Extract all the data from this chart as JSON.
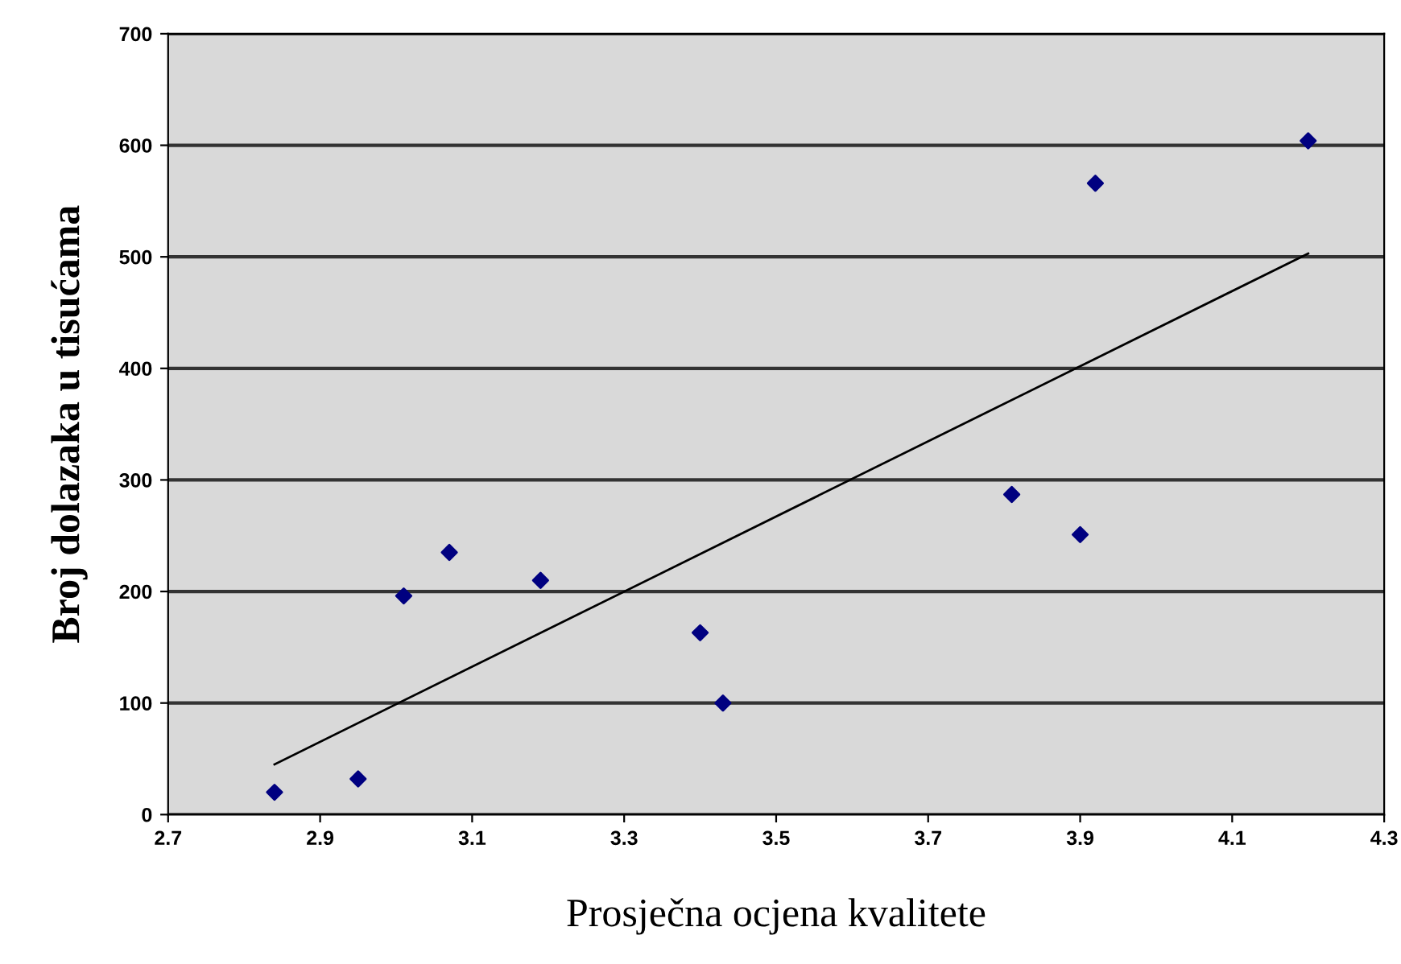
{
  "chart_data": {
    "type": "scatter",
    "xlabel": "Prosječna ocjena kvalitete",
    "ylabel": "Broj dolazaka u tisućama",
    "xlim": [
      2.7,
      4.3
    ],
    "xticks": [
      2.7,
      2.9,
      3.1,
      3.3,
      3.5,
      3.7,
      3.9,
      4.1,
      4.3
    ],
    "ylim": [
      0,
      700
    ],
    "yticks": [
      0,
      100,
      200,
      300,
      400,
      500,
      600,
      700
    ],
    "grid": "y",
    "marker": "diamond",
    "series": [
      {
        "color": "#000080",
        "x": [
          2.84,
          2.95,
          3.01,
          3.07,
          3.19,
          3.4,
          3.43,
          3.81,
          3.9,
          3.92,
          4.2
        ],
        "values": [
          20,
          32,
          196,
          235,
          210,
          163,
          100,
          287,
          251,
          566,
          604
        ]
      },
      {
        "type": "line",
        "color": "#000000",
        "marker": "none",
        "x": [
          2.84,
          4.2
        ],
        "values": [
          45,
          503
        ]
      }
    ]
  }
}
